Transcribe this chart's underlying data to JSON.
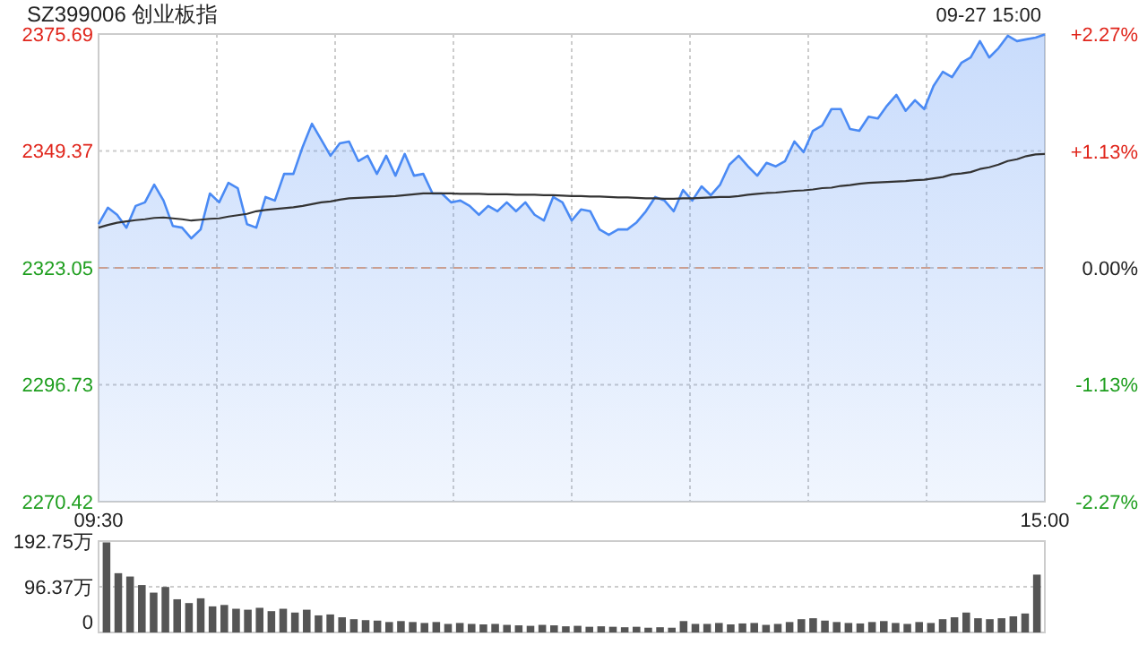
{
  "chart_data": [
    {
      "type": "line",
      "title": "SZ399006 创业板指",
      "annotations": [
        "09-27 15:00"
      ],
      "categories": [
        "09:30",
        null,
        null,
        null,
        null,
        null,
        null,
        null,
        null,
        null,
        null,
        null,
        null,
        null,
        null,
        null,
        null,
        null,
        null,
        null,
        null,
        null,
        null,
        null,
        null,
        null,
        null,
        null,
        null,
        null,
        null,
        null,
        null,
        null,
        null,
        null,
        null,
        null,
        null,
        null,
        null,
        null,
        null,
        null,
        null,
        null,
        null,
        null,
        null,
        null,
        null,
        null,
        null,
        null,
        null,
        null,
        null,
        null,
        null,
        null,
        null,
        null,
        null,
        null,
        null,
        null,
        null,
        null,
        null,
        null,
        null,
        null,
        null,
        null,
        null,
        null,
        null,
        null,
        null,
        null,
        null,
        null,
        null,
        null,
        null,
        null,
        null,
        null,
        null,
        null,
        null,
        null,
        null,
        null,
        null,
        null,
        null,
        null,
        null,
        null,
        null,
        null,
        "15:00"
      ],
      "ylim": [
        2270.42,
        2375.69
      ],
      "yticks": [
        2270.42,
        2296.73,
        2323.05,
        2349.37,
        2375.69
      ],
      "y2lim": [
        -2.27,
        2.27
      ],
      "y2ticks": [
        {
          "value": -2.27,
          "label": "-2.27%"
        },
        {
          "value": -1.13,
          "label": "-1.13%"
        },
        {
          "value": 0,
          "label": "0.00%"
        },
        {
          "value": 1.13,
          "label": "+1.13%"
        },
        {
          "value": 2.27,
          "label": "+2.27%"
        }
      ],
      "grid": true,
      "ref_lines": [
        {
          "axis": "y",
          "value": 2323.05,
          "color": "#e8a47a",
          "line_style": "dashed"
        }
      ],
      "series": [
        {
          "type": "area",
          "color": "#4a8af4",
          "values": [
            2332.9,
            2336.6,
            2335.0,
            2332.1,
            2337.0,
            2337.8,
            2341.8,
            2338.2,
            2332.5,
            2332.1,
            2329.7,
            2331.7,
            2339.8,
            2337.8,
            2342.2,
            2341.0,
            2332.9,
            2332.1,
            2339.0,
            2338.2,
            2344.2,
            2344.2,
            2350.3,
            2355.5,
            2351.9,
            2348.3,
            2351.1,
            2351.5,
            2347.1,
            2348.3,
            2344.2,
            2348.3,
            2343.8,
            2348.7,
            2343.8,
            2344.2,
            2339.8,
            2339.8,
            2337.8,
            2338.2,
            2337.0,
            2335.0,
            2337.0,
            2335.8,
            2337.8,
            2335.8,
            2337.8,
            2335.0,
            2333.7,
            2339.0,
            2337.8,
            2333.7,
            2336.2,
            2335.8,
            2331.7,
            2330.5,
            2331.7,
            2331.7,
            2333.3,
            2335.8,
            2339.0,
            2338.2,
            2335.8,
            2340.6,
            2338.2,
            2341.4,
            2339.4,
            2341.8,
            2346.3,
            2348.3,
            2345.9,
            2343.8,
            2346.7,
            2345.9,
            2347.1,
            2351.5,
            2349.1,
            2353.9,
            2355.1,
            2358.8,
            2358.8,
            2354.3,
            2353.9,
            2357.1,
            2356.7,
            2359.6,
            2362.0,
            2358.4,
            2360.8,
            2358.8,
            2364.0,
            2367.2,
            2366.0,
            2369.2,
            2370.4,
            2374.1,
            2370.4,
            2372.5,
            2375.3,
            2374.1,
            2374.5,
            2374.9,
            2375.6
          ]
        },
        {
          "type": "line",
          "color": "#333333",
          "values": [
            2332.1,
            2332.7,
            2333.2,
            2333.5,
            2333.8,
            2334.0,
            2334.3,
            2334.4,
            2334.2,
            2334.0,
            2333.7,
            2333.9,
            2334.1,
            2334.2,
            2334.6,
            2334.9,
            2335.2,
            2335.8,
            2336.1,
            2336.3,
            2336.5,
            2336.7,
            2337.0,
            2337.4,
            2337.8,
            2338.0,
            2338.4,
            2338.7,
            2338.8,
            2338.9,
            2339.0,
            2339.1,
            2339.2,
            2339.4,
            2339.6,
            2339.8,
            2339.8,
            2339.8,
            2339.8,
            2339.7,
            2339.7,
            2339.7,
            2339.6,
            2339.6,
            2339.6,
            2339.5,
            2339.5,
            2339.5,
            2339.4,
            2339.4,
            2339.3,
            2339.2,
            2339.2,
            2339.1,
            2339.1,
            2339.0,
            2338.9,
            2338.9,
            2338.8,
            2338.7,
            2338.7,
            2338.6,
            2338.6,
            2338.7,
            2338.7,
            2338.8,
            2338.9,
            2339.0,
            2339.0,
            2339.2,
            2339.5,
            2339.7,
            2339.9,
            2340.0,
            2340.2,
            2340.4,
            2340.5,
            2340.7,
            2341.0,
            2341.1,
            2341.5,
            2341.7,
            2342.0,
            2342.2,
            2342.3,
            2342.4,
            2342.5,
            2342.6,
            2342.8,
            2342.9,
            2343.2,
            2343.5,
            2344.1,
            2344.3,
            2344.6,
            2345.3,
            2345.7,
            2346.3,
            2347.1,
            2347.5,
            2348.2,
            2348.6,
            2348.7
          ]
        }
      ]
    },
    {
      "type": "bar",
      "color": "#555555",
      "categories": [
        null,
        null,
        null,
        null,
        null,
        null,
        null,
        null,
        null,
        null,
        null,
        null,
        null,
        null,
        null,
        null,
        null,
        null,
        null,
        null,
        null,
        null,
        null,
        null,
        null,
        null,
        null,
        null,
        null,
        null,
        null,
        null,
        null,
        null,
        null,
        null,
        null,
        null,
        null,
        null,
        null,
        null,
        null,
        null,
        null,
        null,
        null,
        null,
        null,
        null,
        null,
        null,
        null,
        null,
        null,
        null,
        null,
        null,
        null,
        null,
        null,
        null,
        null,
        null,
        null,
        null,
        null,
        null,
        null,
        null,
        null,
        null,
        null,
        null,
        null,
        null,
        null,
        null,
        null,
        null
      ],
      "values": [
        190,
        125,
        118,
        100,
        84,
        96,
        70,
        62,
        72,
        55,
        58,
        50,
        48,
        52,
        45,
        50,
        42,
        48,
        36,
        38,
        32,
        28,
        26,
        25,
        22,
        24,
        22,
        20,
        22,
        18,
        20,
        18,
        17,
        18,
        16,
        15,
        14,
        16,
        15,
        13,
        14,
        12,
        13,
        12,
        11,
        12,
        10,
        11,
        10,
        24,
        18,
        18,
        20,
        17,
        19,
        20,
        16,
        18,
        22,
        28,
        30,
        25,
        22,
        20,
        19,
        22,
        24,
        20,
        18,
        22,
        20,
        28,
        32,
        42,
        30,
        28,
        30,
        34,
        40,
        122
      ],
      "ylim": [
        0,
        192.75
      ],
      "yticks": [
        0,
        {
          "value": 96.37,
          "label": "96.37万"
        },
        {
          "value": 192.75,
          "label": "192.75万"
        }
      ],
      "grid": "y"
    }
  ]
}
